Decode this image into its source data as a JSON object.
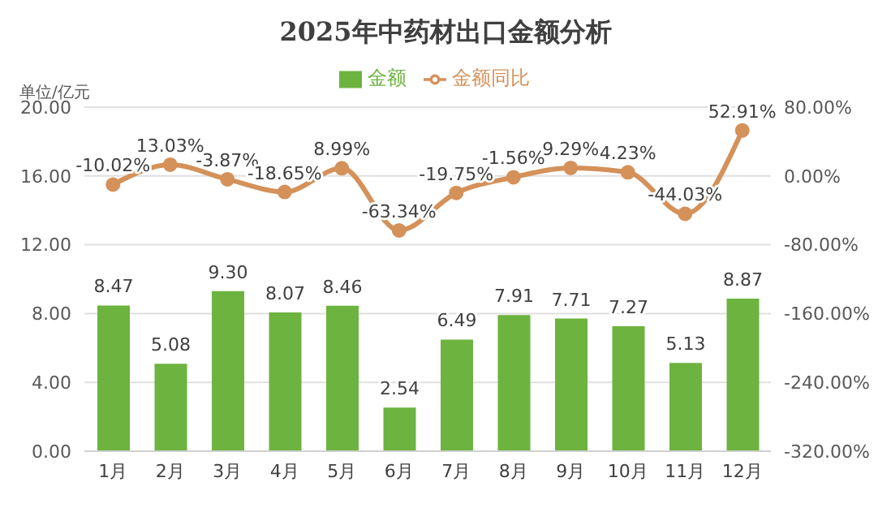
{
  "chart_data": {
    "type": "bar",
    "title": "2025年中药材出口金额分析",
    "ylabel": "单位/亿元",
    "categories": [
      "1月",
      "2月",
      "3月",
      "4月",
      "5月",
      "6月",
      "7月",
      "8月",
      "9月",
      "10月",
      "11月",
      "12月"
    ],
    "series": [
      {
        "name": "金额",
        "color": "#6db33f",
        "values": [
          8.47,
          5.08,
          9.3,
          8.07,
          8.46,
          2.54,
          6.49,
          7.91,
          7.71,
          7.27,
          5.13,
          8.87
        ],
        "value_labels": [
          "8.47",
          "5.08",
          "9.30",
          "8.07",
          "8.46",
          "2.54",
          "6.49",
          "7.91",
          "7.71",
          "7.27",
          "5.13",
          "8.87"
        ]
      },
      {
        "name": "金额同比",
        "type": "line",
        "axis": "y2",
        "color": "#d4915a",
        "values": [
          -10.02,
          13.03,
          -3.87,
          -18.65,
          8.99,
          -63.34,
          -19.75,
          -1.56,
          9.29,
          4.23,
          -44.03,
          52.91
        ],
        "value_labels": [
          "-10.02%",
          "13.03%",
          "-3.87%",
          "-18.65%",
          "8.99%",
          "-63.34%",
          "-19.75%",
          "-1.56%",
          "9.29%",
          "4.23%",
          "-44.03%",
          "52.91%"
        ]
      }
    ],
    "ylim": [
      0,
      20
    ],
    "yticks": [
      {
        "value": 0,
        "label": "0.00"
      },
      {
        "value": 4,
        "label": "4.00"
      },
      {
        "value": 8,
        "label": "8.00"
      },
      {
        "value": 12,
        "label": "12.00"
      },
      {
        "value": 16,
        "label": "16.00"
      },
      {
        "value": 20,
        "label": "20.00"
      }
    ],
    "y2lim": [
      -320,
      80
    ],
    "y2ticks": [
      {
        "value": -320,
        "label": "-320.00%"
      },
      {
        "value": -240,
        "label": "-240.00%"
      },
      {
        "value": -160,
        "label": "-160.00%"
      },
      {
        "value": -80,
        "label": "-80.00%"
      },
      {
        "value": 0,
        "label": "0.00%"
      },
      {
        "value": 80,
        "label": "80.00%"
      }
    ],
    "grid": "y",
    "legend": "top",
    "marker": "circle"
  }
}
